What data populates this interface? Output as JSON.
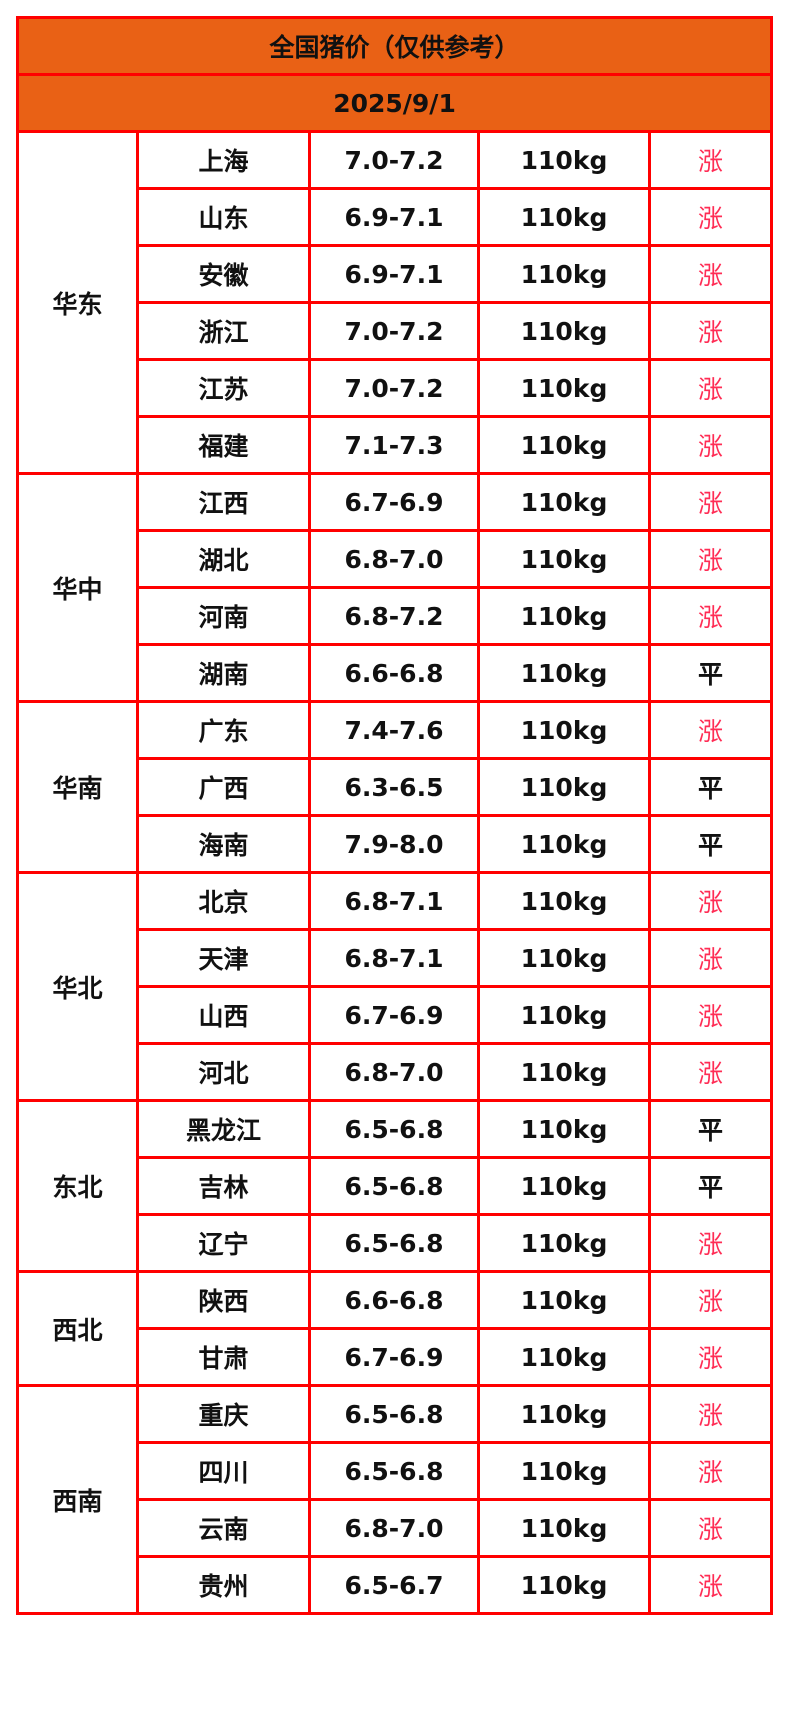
{
  "title": "全国猪价（仅供参考）",
  "date": "2025/9/1",
  "colors": {
    "header_bg": "#e96115",
    "border": "#ff0000",
    "rise": "#ff2d55"
  },
  "regions": [
    {
      "name": "华东",
      "rows": [
        {
          "province": "上海",
          "price": "7.0-7.2",
          "weight": "110kg",
          "trend": "涨"
        },
        {
          "province": "山东",
          "price": "6.9-7.1",
          "weight": "110kg",
          "trend": "涨"
        },
        {
          "province": "安徽",
          "price": "6.9-7.1",
          "weight": "110kg",
          "trend": "涨"
        },
        {
          "province": "浙江",
          "price": "7.0-7.2",
          "weight": "110kg",
          "trend": "涨"
        },
        {
          "province": "江苏",
          "price": "7.0-7.2",
          "weight": "110kg",
          "trend": "涨"
        },
        {
          "province": "福建",
          "price": "7.1-7.3",
          "weight": "110kg",
          "trend": "涨"
        }
      ]
    },
    {
      "name": "华中",
      "rows": [
        {
          "province": "江西",
          "price": "6.7-6.9",
          "weight": "110kg",
          "trend": "涨"
        },
        {
          "province": "湖北",
          "price": "6.8-7.0",
          "weight": "110kg",
          "trend": "涨"
        },
        {
          "province": "河南",
          "price": "6.8-7.2",
          "weight": "110kg",
          "trend": "涨"
        },
        {
          "province": "湖南",
          "price": "6.6-6.8",
          "weight": "110kg",
          "trend": "平"
        }
      ]
    },
    {
      "name": "华南",
      "rows": [
        {
          "province": "广东",
          "price": "7.4-7.6",
          "weight": "110kg",
          "trend": "涨"
        },
        {
          "province": "广西",
          "price": "6.3-6.5",
          "weight": "110kg",
          "trend": "平"
        },
        {
          "province": "海南",
          "price": "7.9-8.0",
          "weight": "110kg",
          "trend": "平"
        }
      ]
    },
    {
      "name": "华北",
      "rows": [
        {
          "province": "北京",
          "price": "6.8-7.1",
          "weight": "110kg",
          "trend": "涨"
        },
        {
          "province": "天津",
          "price": "6.8-7.1",
          "weight": "110kg",
          "trend": "涨"
        },
        {
          "province": "山西",
          "price": "6.7-6.9",
          "weight": "110kg",
          "trend": "涨"
        },
        {
          "province": "河北",
          "price": "6.8-7.0",
          "weight": "110kg",
          "trend": "涨"
        }
      ]
    },
    {
      "name": "东北",
      "rows": [
        {
          "province": "黑龙江",
          "price": "6.5-6.8",
          "weight": "110kg",
          "trend": "平"
        },
        {
          "province": "吉林",
          "price": "6.5-6.8",
          "weight": "110kg",
          "trend": "平"
        },
        {
          "province": "辽宁",
          "price": "6.5-6.8",
          "weight": "110kg",
          "trend": "涨"
        }
      ]
    },
    {
      "name": "西北",
      "rows": [
        {
          "province": "陕西",
          "price": "6.6-6.8",
          "weight": "110kg",
          "trend": "涨"
        },
        {
          "province": "甘肃",
          "price": "6.7-6.9",
          "weight": "110kg",
          "trend": "涨"
        }
      ]
    },
    {
      "name": "西南",
      "rows": [
        {
          "province": "重庆",
          "price": "6.5-6.8",
          "weight": "110kg",
          "trend": "涨"
        },
        {
          "province": "四川",
          "price": "6.5-6.8",
          "weight": "110kg",
          "trend": "涨"
        },
        {
          "province": "云南",
          "price": "6.8-7.0",
          "weight": "110kg",
          "trend": "涨"
        },
        {
          "province": "贵州",
          "price": "6.5-6.7",
          "weight": "110kg",
          "trend": "涨"
        }
      ]
    }
  ]
}
